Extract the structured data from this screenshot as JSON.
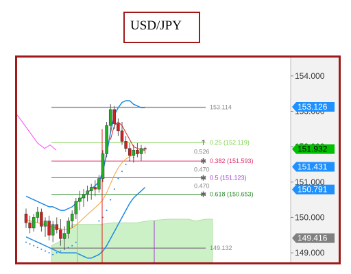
{
  "title": "USD/JPY",
  "chart_data": {
    "type": "candlestick",
    "title": "USD/JPY",
    "yaxis": {
      "range": [
        148.73,
        154.52
      ],
      "ticks": [
        "154.000",
        "153.000",
        "152.000",
        "151.000",
        "150.000",
        "149.000"
      ],
      "tick_values": [
        154.0,
        153.0,
        152.0,
        151.0,
        150.0,
        149.0
      ]
    },
    "price_tags": [
      {
        "label": "153.126",
        "value": 153.126,
        "color": "#1e90ff"
      },
      {
        "label": "151.932",
        "value": 151.932,
        "color": "#00c000"
      },
      {
        "label": "151.431",
        "value": 151.431,
        "color": "#1e90ff"
      },
      {
        "label": "150.791",
        "value": 150.791,
        "color": "#1e90ff"
      },
      {
        "label": "149.416",
        "value": 149.416,
        "color": "#808080"
      }
    ],
    "horizontal_lines": [
      {
        "label": "153.114",
        "value": 153.114,
        "color": "#888888"
      },
      {
        "label": "149.132",
        "value": 149.132,
        "color": "#888888"
      }
    ],
    "fibonacci": [
      {
        "label": "0.25 (152.119)",
        "value": 152.119,
        "color": "#7fd14a"
      },
      {
        "label": "0.382 (151.593)",
        "value": 151.593,
        "color": "#e0306a"
      },
      {
        "label": "0.5 (151.123)",
        "value": 151.123,
        "color": "#a040d0"
      },
      {
        "label": "0.618 (150.653)",
        "value": 150.653,
        "color": "#2a8a2a"
      }
    ],
    "fib_gap_labels": [
      "0.526",
      "0.470",
      "0.470"
    ],
    "candles": [
      {
        "o": 150.1,
        "h": 150.25,
        "l": 149.7,
        "c": 149.85
      },
      {
        "o": 149.85,
        "h": 150.05,
        "l": 149.55,
        "c": 149.7
      },
      {
        "o": 149.7,
        "h": 150.1,
        "l": 149.6,
        "c": 150.0
      },
      {
        "o": 150.0,
        "h": 150.3,
        "l": 149.85,
        "c": 150.15
      },
      {
        "o": 150.15,
        "h": 150.25,
        "l": 149.6,
        "c": 149.75
      },
      {
        "o": 149.75,
        "h": 150.0,
        "l": 149.45,
        "c": 149.9
      },
      {
        "o": 149.9,
        "h": 150.05,
        "l": 149.35,
        "c": 149.5
      },
      {
        "o": 149.5,
        "h": 149.9,
        "l": 149.3,
        "c": 149.8
      },
      {
        "o": 149.8,
        "h": 150.0,
        "l": 149.55,
        "c": 149.65
      },
      {
        "o": 149.65,
        "h": 149.95,
        "l": 149.2,
        "c": 149.4
      },
      {
        "o": 149.4,
        "h": 149.75,
        "l": 149.1,
        "c": 149.55
      },
      {
        "o": 149.55,
        "h": 150.0,
        "l": 149.4,
        "c": 149.9
      },
      {
        "o": 149.9,
        "h": 150.2,
        "l": 149.7,
        "c": 150.1
      },
      {
        "o": 150.1,
        "h": 150.55,
        "l": 149.95,
        "c": 150.45
      },
      {
        "o": 150.45,
        "h": 150.75,
        "l": 150.2,
        "c": 150.55
      },
      {
        "o": 150.55,
        "h": 150.8,
        "l": 150.3,
        "c": 150.65
      },
      {
        "o": 150.65,
        "h": 150.9,
        "l": 150.45,
        "c": 150.75
      },
      {
        "o": 150.75,
        "h": 150.95,
        "l": 150.5,
        "c": 150.85
      },
      {
        "o": 150.85,
        "h": 151.05,
        "l": 150.6,
        "c": 150.8
      },
      {
        "o": 150.8,
        "h": 151.2,
        "l": 150.7,
        "c": 151.1
      },
      {
        "o": 151.1,
        "h": 151.9,
        "l": 151.0,
        "c": 151.8
      },
      {
        "o": 151.8,
        "h": 152.7,
        "l": 151.7,
        "c": 152.6
      },
      {
        "o": 152.6,
        "h": 153.2,
        "l": 152.4,
        "c": 153.05
      },
      {
        "o": 153.05,
        "h": 153.15,
        "l": 152.5,
        "c": 152.65
      },
      {
        "o": 152.65,
        "h": 152.8,
        "l": 152.3,
        "c": 152.45
      },
      {
        "o": 152.45,
        "h": 152.7,
        "l": 152.05,
        "c": 152.15
      },
      {
        "o": 152.15,
        "h": 152.3,
        "l": 151.85,
        "c": 151.95
      },
      {
        "o": 151.95,
        "h": 152.1,
        "l": 151.6,
        "c": 151.75
      },
      {
        "o": 151.75,
        "h": 152.05,
        "l": 151.55,
        "c": 151.9
      },
      {
        "o": 151.9,
        "h": 152.1,
        "l": 151.7,
        "c": 151.8
      },
      {
        "o": 151.8,
        "h": 152.05,
        "l": 151.6,
        "c": 151.95
      },
      {
        "o": 151.95,
        "h": 152.0,
        "l": 151.8,
        "c": 151.93
      }
    ],
    "bollinger_upper": [
      150.6,
      150.55,
      150.5,
      150.45,
      150.4,
      150.35,
      150.3,
      150.3,
      150.25,
      150.2,
      150.2,
      150.25,
      150.3,
      150.4,
      150.5,
      150.6,
      150.7,
      150.8,
      150.9,
      151.0,
      151.3,
      151.8,
      152.4,
      152.9,
      153.1,
      153.25,
      153.3,
      153.3,
      153.2,
      153.15,
      153.1,
      153.1
    ],
    "bollinger_lower": [
      149.45,
      149.4,
      149.35,
      149.3,
      149.25,
      149.2,
      149.15,
      149.1,
      149.05,
      149.0,
      149.0,
      149.0,
      149.0,
      149.0,
      148.95,
      148.9,
      148.85,
      148.85,
      148.9,
      148.95,
      149.05,
      149.2,
      149.4,
      149.6,
      149.8,
      150.0,
      150.2,
      150.4,
      150.55,
      150.65,
      150.75,
      150.85
    ],
    "moving_average": [
      149.95,
      149.9,
      149.88,
      149.85,
      149.82,
      149.8,
      149.75,
      149.72,
      149.7,
      149.68,
      149.65,
      149.66,
      149.7,
      149.78,
      149.88,
      149.98,
      150.08,
      150.18,
      150.28,
      150.38,
      150.5,
      150.7,
      150.95,
      151.2,
      151.4,
      151.55,
      151.65,
      151.72,
      151.78,
      151.82,
      151.86,
      151.9
    ],
    "red_line": [
      null,
      null,
      null,
      null,
      null,
      null,
      null,
      null,
      null,
      null,
      null,
      null,
      null,
      null,
      null,
      null,
      null,
      null,
      null,
      null,
      null,
      null,
      152.2,
      152.6,
      152.7,
      152.6,
      152.4,
      152.2,
      152.0,
      151.95,
      151.92,
      151.9
    ],
    "magenta_line_values": [
      152.9,
      152.5,
      152.1,
      151.95,
      152.05,
      151.9
    ]
  }
}
